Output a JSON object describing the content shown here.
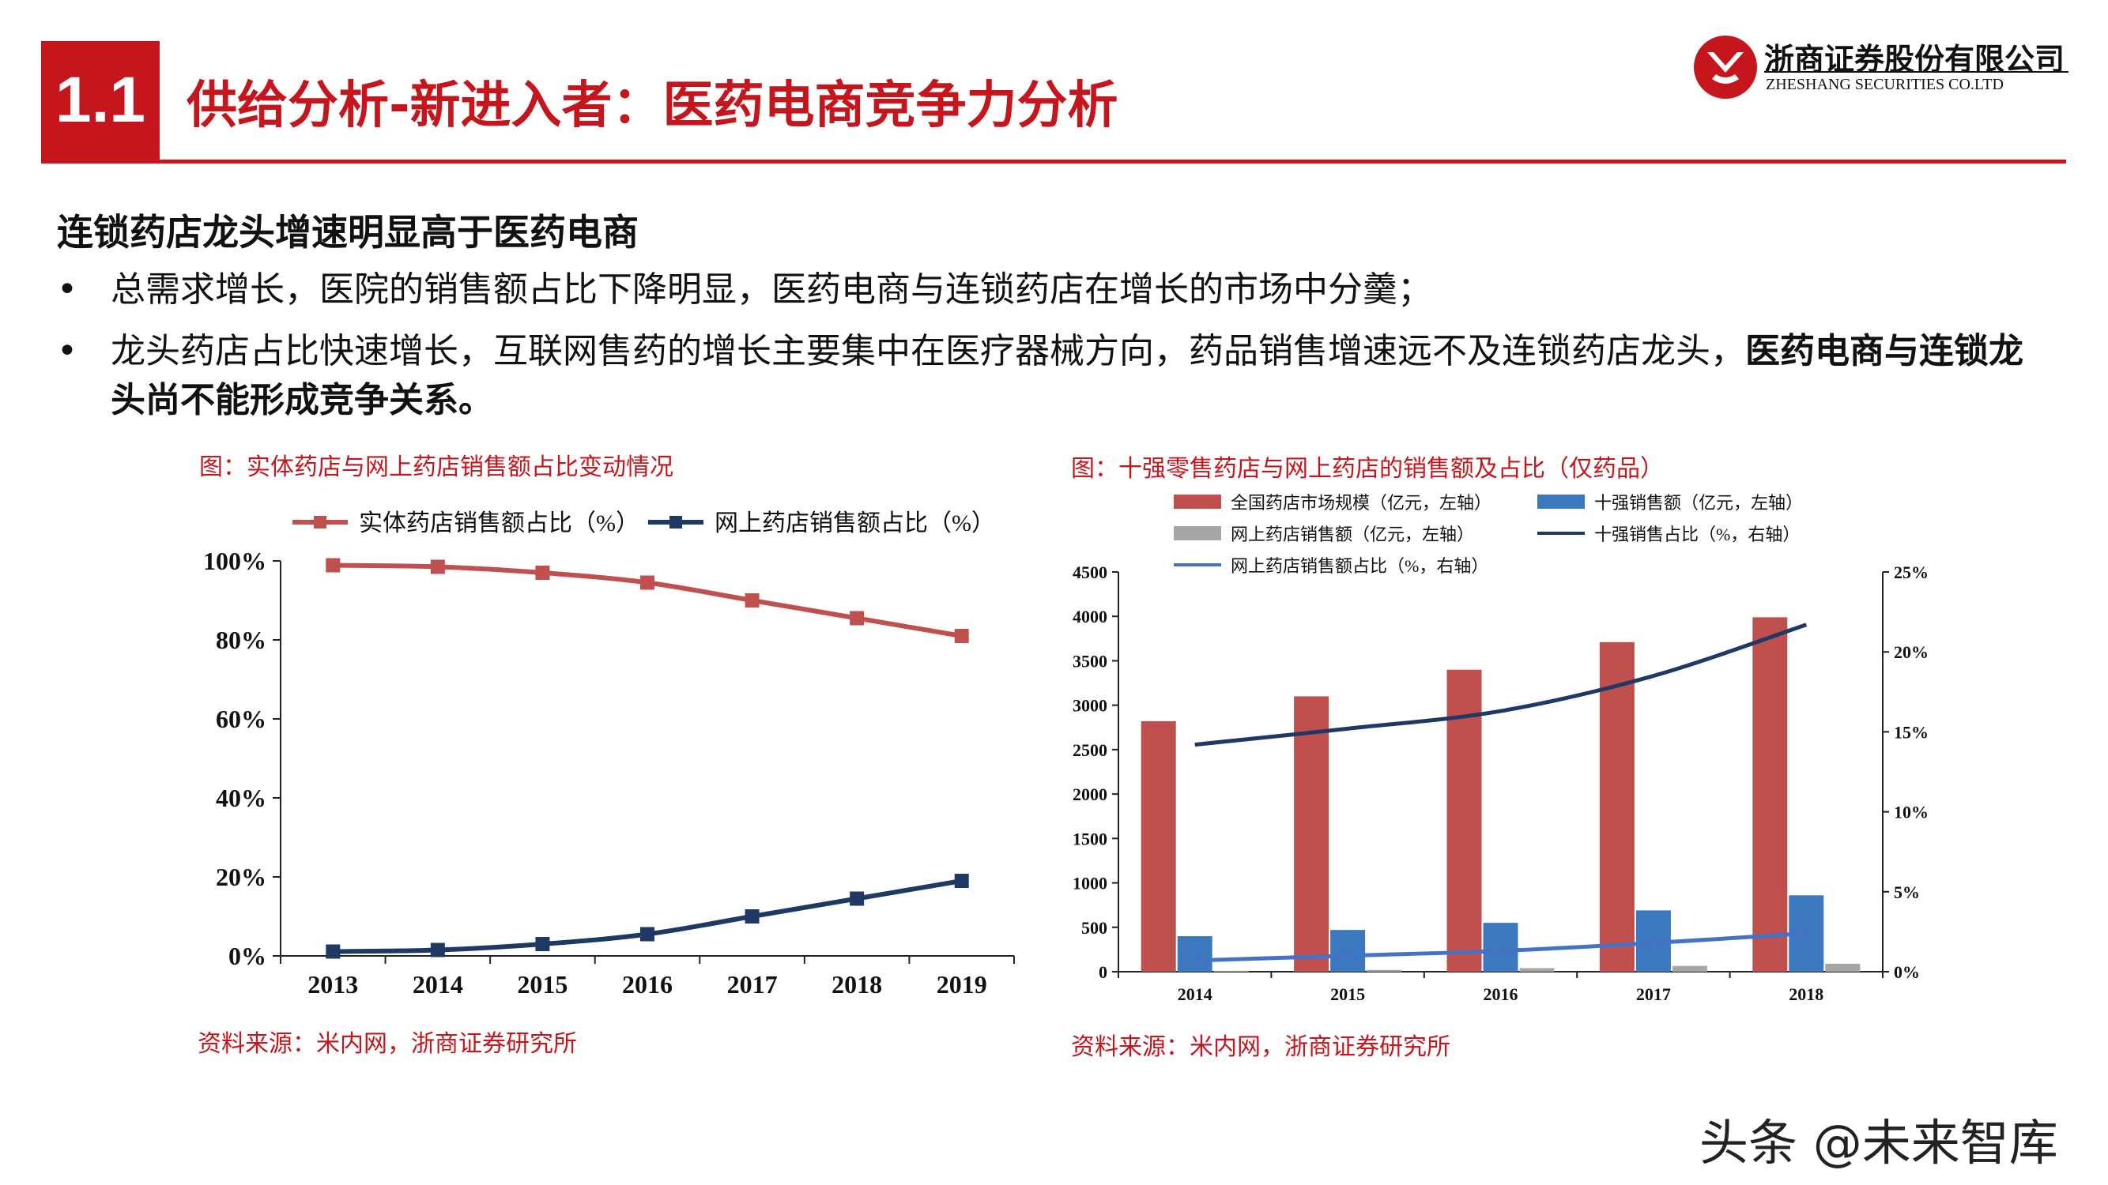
{
  "header": {
    "section_number": "1.1",
    "title": "供给分析-新进入者：医药电商竞争力分析",
    "logo": {
      "name": "浙商证券股份有限公司",
      "english": "ZHESHANG SECURITIES CO.LTD"
    }
  },
  "body": {
    "heading": "连锁药店龙头增速明显高于医药电商",
    "bullets": [
      {
        "dot": "•",
        "text": "总需求增长，医院的销售额占比下降明显，医药电商与连锁药店在增长的市场中分羹；",
        "bold": ""
      },
      {
        "dot": "•",
        "text": "龙头药店占比快速增长，互联网售药的增长主要集中在医疗器械方向，药品销售增速远不及连锁药店龙头，",
        "bold": "医药电商与连锁龙头尚不能形成竞争关系。"
      }
    ]
  },
  "charts": {
    "left": {
      "caption": "图：实体药店与网上药店销售额占比变动情况",
      "source": "资料来源：米内网，浙商证券研究所"
    },
    "right": {
      "caption": "图：十强零售药店与网上药店的销售额及占比（仅药品）",
      "source": "资料来源：米内网，浙商证券研究所"
    }
  },
  "watermark": "头条 @未来智库",
  "chart_data": [
    {
      "type": "line",
      "x": [
        "2013",
        "2014",
        "2015",
        "2016",
        "2017",
        "2018",
        "2019"
      ],
      "series": [
        {
          "name": "实体药店销售额占比（%）",
          "color": "#c0504d",
          "marker": "square",
          "values": [
            98.9,
            98.5,
            97.0,
            94.5,
            90.0,
            85.5,
            81.0
          ]
        },
        {
          "name": "网上药店销售额占比（%）",
          "color": "#1f3864",
          "marker": "square",
          "values": [
            1.1,
            1.5,
            3.0,
            5.5,
            10.0,
            14.5,
            19.0
          ]
        }
      ],
      "ylim": [
        0,
        100
      ],
      "yticks": [
        "0%",
        "20%",
        "40%",
        "60%",
        "80%",
        "100%"
      ],
      "legend": "top",
      "grid": false
    },
    {
      "type": "bar",
      "categories": [
        "2014",
        "2015",
        "2016",
        "2017",
        "2018"
      ],
      "series": [
        {
          "name": "全国药店市场规模（亿元，左轴）",
          "type": "bar",
          "axis": "left",
          "color": "#c0504d",
          "values": [
            2820,
            3100,
            3400,
            3710,
            3990
          ]
        },
        {
          "name": "十强销售额（亿元，左轴）",
          "type": "bar",
          "axis": "left",
          "color": "#3c78c0",
          "values": [
            400,
            470,
            550,
            690,
            860
          ]
        },
        {
          "name": "网上药店销售额（亿元，左轴）",
          "type": "bar",
          "axis": "left",
          "color": "#a6a6a6",
          "values": [
            10,
            20,
            40,
            65,
            90
          ]
        },
        {
          "name": "十强销售占比（%，右轴）",
          "type": "line",
          "axis": "right",
          "color": "#1f3864",
          "values": [
            14.2,
            15.2,
            16.3,
            18.5,
            21.7
          ]
        },
        {
          "name": "网上药店销售额占比（%，右轴）",
          "type": "line",
          "axis": "right",
          "color": "#4472c4",
          "values": [
            0.7,
            1.0,
            1.3,
            1.8,
            2.4
          ]
        }
      ],
      "ylim_left": [
        0,
        4500
      ],
      "yticks_left": [
        "0",
        "500",
        "1000",
        "1500",
        "2000",
        "2500",
        "3000",
        "3500",
        "4000",
        "4500"
      ],
      "ylim_right": [
        0,
        25
      ],
      "yticks_right": [
        "0%",
        "5%",
        "10%",
        "15%",
        "20%",
        "25%"
      ],
      "legend": "top",
      "grid": false
    }
  ]
}
